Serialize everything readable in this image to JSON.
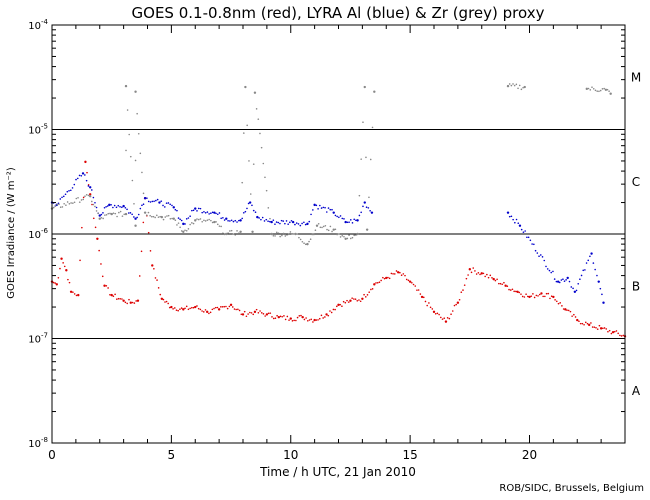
{
  "chart_data": {
    "type": "scatter",
    "title": "GOES 0.1-0.8nm (red), LYRA Al (blue) & Zr (grey) proxy",
    "xlabel": "Time / h UTC, 21 Jan 2010",
    "ylabel": "GOES Irradiance / (W m⁻²)",
    "xlim": [
      0,
      24
    ],
    "ylim_log10": [
      -8,
      -4
    ],
    "yscale": "log",
    "x_ticks": [
      0,
      5,
      10,
      15,
      20
    ],
    "y_tick_labels": [
      {
        "exp": -8,
        "base": "10",
        "sup": "-8"
      },
      {
        "exp": -7,
        "base": "10",
        "sup": "-7"
      },
      {
        "exp": -6,
        "base": "10",
        "sup": "-6"
      },
      {
        "exp": -5,
        "base": "10",
        "sup": "-5"
      },
      {
        "exp": -4,
        "base": "10",
        "sup": "-4"
      }
    ],
    "flare_classes": [
      {
        "label": "A",
        "log_center": -7.5
      },
      {
        "label": "B",
        "log_center": -6.5
      },
      {
        "label": "C",
        "log_center": -5.5
      },
      {
        "label": "M",
        "log_center": -4.5
      }
    ],
    "class_lines_log10": [
      -7,
      -6,
      -5
    ],
    "series": [
      {
        "name": "GOES 0.1-0.8nm",
        "color": "#dd0000",
        "points": [
          [
            0.0,
            3.5e-07
          ],
          [
            0.2,
            3.3e-07
          ],
          [
            0.4,
            5.8e-07
          ],
          [
            0.6,
            4.5e-07
          ],
          [
            0.8,
            2.8e-07
          ],
          [
            1.1,
            2.6e-07
          ],
          [
            1.4,
            4.9e-06
          ],
          [
            1.6,
            2.4e-06
          ],
          [
            1.9,
            9e-07
          ],
          [
            2.2,
            3.2e-07
          ],
          [
            2.5,
            2.6e-07
          ],
          [
            3.0,
            2.3e-07
          ],
          [
            3.3,
            2.2e-07
          ],
          [
            3.6,
            2.3e-07
          ],
          [
            3.9,
            2.2e-06
          ],
          [
            4.2,
            5e-07
          ],
          [
            4.6,
            2.4e-07
          ],
          [
            5.0,
            2e-07
          ],
          [
            5.5,
            1.9e-07
          ],
          [
            6.0,
            2e-07
          ],
          [
            6.5,
            1.8e-07
          ],
          [
            7.0,
            1.9e-07
          ],
          [
            7.5,
            2.1e-07
          ],
          [
            8.0,
            1.7e-07
          ],
          [
            8.5,
            1.8e-07
          ],
          [
            9.0,
            1.7e-07
          ],
          [
            9.5,
            1.6e-07
          ],
          [
            10.0,
            1.55e-07
          ],
          [
            10.5,
            1.6e-07
          ],
          [
            11.0,
            1.5e-07
          ],
          [
            11.5,
            1.7e-07
          ],
          [
            12.0,
            2.1e-07
          ],
          [
            12.5,
            2.3e-07
          ],
          [
            13.0,
            2.4e-07
          ],
          [
            13.5,
            3.3e-07
          ],
          [
            14.0,
            3.8e-07
          ],
          [
            14.5,
            4.3e-07
          ],
          [
            15.0,
            3.5e-07
          ],
          [
            15.5,
            2.5e-07
          ],
          [
            16.0,
            1.8e-07
          ],
          [
            16.5,
            1.45e-07
          ],
          [
            17.0,
            2.2e-07
          ],
          [
            17.5,
            4.6e-07
          ],
          [
            18.0,
            4.2e-07
          ],
          [
            18.5,
            3.7e-07
          ],
          [
            19.0,
            3.2e-07
          ],
          [
            19.5,
            2.8e-07
          ],
          [
            20.0,
            2.5e-07
          ],
          [
            20.5,
            2.7e-07
          ],
          [
            21.0,
            2.5e-07
          ],
          [
            21.5,
            1.9e-07
          ],
          [
            22.0,
            1.5e-07
          ],
          [
            22.5,
            1.35e-07
          ],
          [
            23.0,
            1.25e-07
          ],
          [
            23.5,
            1.15e-07
          ],
          [
            24.0,
            1.05e-07
          ]
        ]
      },
      {
        "name": "LYRA Al proxy",
        "color": "#0000cc",
        "points": [
          [
            0.0,
            2e-06
          ],
          [
            0.2,
            1.9e-06
          ],
          [
            1.3,
            3.8e-06
          ],
          [
            1.6,
            2.8e-06
          ],
          [
            2.0,
            1.5e-06
          ],
          [
            2.4,
            1.9e-06
          ],
          [
            3.0,
            1.85e-06
          ],
          [
            3.5,
            1.4e-06
          ],
          [
            3.9,
            2.2e-06
          ],
          [
            4.5,
            2e-06
          ],
          [
            5.1,
            1.8e-06
          ],
          [
            5.5,
            1.25e-06
          ],
          [
            6.0,
            1.75e-06
          ],
          [
            6.8,
            1.6e-06
          ],
          [
            7.3,
            1.4e-06
          ],
          [
            7.9,
            1.35e-06
          ],
          [
            8.3,
            2e-06
          ],
          [
            8.6,
            1.45e-06
          ],
          [
            9.2,
            1.3e-06
          ],
          [
            10.1,
            1.3e-06
          ],
          [
            10.7,
            1.25e-06
          ],
          [
            11.0,
            1.9e-06
          ],
          [
            11.8,
            1.6e-06
          ],
          [
            12.3,
            1.3e-06
          ],
          [
            12.8,
            1.35e-06
          ],
          [
            13.1,
            2e-06
          ],
          [
            13.4,
            1.6e-06
          ],
          [
            19.1,
            1.6e-06
          ],
          [
            19.6,
            1.2e-06
          ],
          [
            21.2,
            3.5e-07
          ],
          [
            21.6,
            3.8e-07
          ],
          [
            21.9,
            2.8e-07
          ],
          [
            22.6,
            6.5e-07
          ],
          [
            22.9,
            3.5e-07
          ],
          [
            23.1,
            2.2e-07
          ]
        ]
      },
      {
        "name": "LYRA Zr proxy",
        "color": "#888888",
        "points": [
          [
            0.0,
            1.75e-06
          ],
          [
            1.6,
            2.3e-06
          ],
          [
            2.0,
            1.4e-06
          ],
          [
            2.5,
            1.55e-06
          ],
          [
            3.1,
            1.55e-06
          ],
          [
            3.5,
            1.2e-06
          ],
          [
            3.9,
            1.6e-06
          ],
          [
            4.6,
            1.45e-06
          ],
          [
            5.1,
            1.4e-06
          ],
          [
            5.5,
            1.05e-06
          ],
          [
            6.0,
            1.35e-06
          ],
          [
            6.8,
            1.3e-06
          ],
          [
            7.3,
            1e-06
          ],
          [
            7.9,
            1.05e-06
          ],
          [
            8.4,
            1.05e-06
          ],
          [
            9.2,
            1e-06
          ],
          [
            10.2,
            1e-06
          ],
          [
            10.7,
            8e-07
          ],
          [
            11.1,
            1.2e-06
          ],
          [
            11.8,
            1.1e-06
          ],
          [
            12.3,
            9e-07
          ],
          [
            12.8,
            1e-06
          ],
          [
            13.2,
            1.1e-06
          ],
          [
            3.1,
            2.6e-05
          ],
          [
            3.5,
            2.3e-05
          ],
          [
            8.1,
            2.55e-05
          ],
          [
            8.5,
            2.25e-05
          ],
          [
            13.1,
            2.55e-05
          ],
          [
            13.5,
            2.3e-05
          ],
          [
            19.1,
            2.6e-05
          ],
          [
            19.8,
            2.55e-05
          ],
          [
            22.4,
            2.45e-05
          ],
          [
            23.2,
            2.4e-05
          ],
          [
            23.4,
            2.2e-05
          ]
        ]
      }
    ],
    "footer": "ROB/SIDC, Brussels, Belgium"
  }
}
